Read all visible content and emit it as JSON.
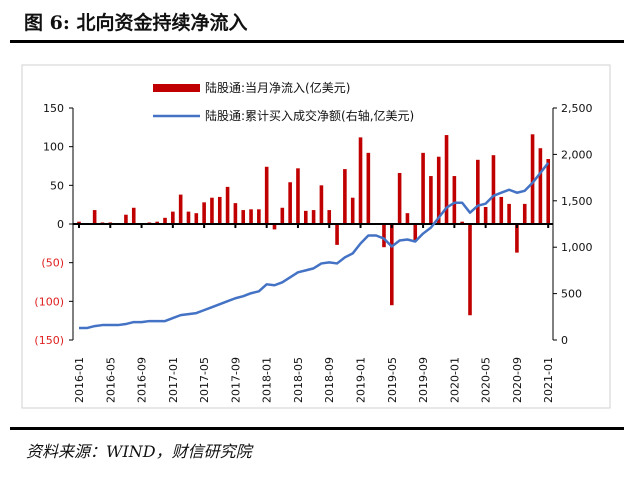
{
  "title": "图 6:  北向资金持续净流入",
  "source": "资料来源：WIND，财信研究院",
  "colors": {
    "bar": "#c00000",
    "line": "#4472c4",
    "negative_label": "#e02020"
  },
  "chart_data": {
    "type": "bar+line",
    "title": "北向资金持续净流入",
    "legend_position": "top-center",
    "series": [
      {
        "name": "陆股通:当月净流入(亿美元)",
        "type": "bar",
        "axis": "left",
        "values": [
          3,
          0,
          18,
          2,
          2,
          1,
          12,
          21,
          0,
          2,
          3,
          8,
          16,
          38,
          16,
          14,
          28,
          34,
          35,
          48,
          27,
          18,
          19,
          19,
          74,
          -7,
          21,
          54,
          72,
          17,
          18,
          50,
          18,
          -27,
          71,
          34,
          112,
          92,
          0,
          -30,
          -105,
          66,
          14,
          -21,
          92,
          62,
          87,
          115,
          62,
          3,
          -118,
          83,
          22,
          89,
          35,
          26,
          -37,
          26,
          116,
          98,
          84
        ]
      },
      {
        "name": "陆股通:累计买入成交净额(右轴,亿美元)",
        "type": "line",
        "axis": "right",
        "values": [
          129,
          129,
          150,
          161,
          161,
          161,
          172,
          193,
          193,
          204,
          204,
          204,
          236,
          268,
          279,
          290,
          322,
          354,
          386,
          418,
          450,
          472,
          504,
          525,
          600,
          590,
          622,
          675,
          729,
          750,
          772,
          825,
          836,
          825,
          890,
          933,
          1040,
          1126,
          1126,
          1093,
          1008,
          1072,
          1083,
          1061,
          1147,
          1211,
          1319,
          1426,
          1479,
          1479,
          1372,
          1447,
          1469,
          1554,
          1587,
          1619,
          1587,
          1608,
          1694,
          1801,
          1908
        ]
      }
    ],
    "x_start": "2016-01",
    "x_end": "2021-01",
    "x_tick_labels": [
      "2016-01",
      "2016-05",
      "2016-09",
      "2017-01",
      "2017-05",
      "2017-09",
      "2018-01",
      "2018-05",
      "2018-09",
      "2019-01",
      "2019-05",
      "2019-09",
      "2020-01",
      "2020-05",
      "2020-09",
      "2021-01"
    ],
    "y_left": {
      "ylim": [
        -150,
        150
      ],
      "ticks": [
        150,
        100,
        50,
        0,
        -50,
        -100,
        -150
      ],
      "tick_labels": [
        "150",
        "100",
        "50",
        "0",
        "(50)",
        "(100)",
        "(150)"
      ]
    },
    "y_right": {
      "ylim": [
        0,
        2500
      ],
      "ticks": [
        2500,
        2000,
        1500,
        1000,
        500,
        0
      ],
      "tick_labels": [
        "2,500",
        "2,000",
        "1,500",
        "1,000",
        "500",
        "0"
      ]
    },
    "grid": false
  }
}
